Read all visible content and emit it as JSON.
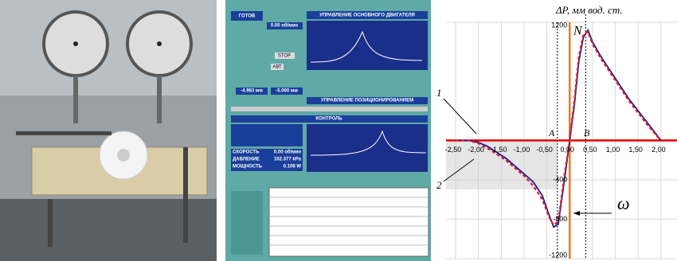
{
  "screenshot": {
    "status": "ГОТОВ",
    "motor_title": "УПРАВЛЕНИЕ ОСНОВНОГО ДВИГАТЕЛЯ",
    "speed_set": "0.00 об/мин",
    "stop": "STOP",
    "auto": "АВТ",
    "position_title": "УПРАВЛЕНИЕ ПОЗИЦИОНИРОВАНИЕМ",
    "pos1": "-4.983 мм",
    "pos2": "-5.000 мм",
    "control_title": "КОНТРОЛЬ",
    "speed_label": "СКОРОСТЬ",
    "speed_value": "0.00 об/мин",
    "pressure_label": "ДАВЛЕНИЕ",
    "pressure_value": "102.377 kPa",
    "power_label": "МОЩНОСТЬ",
    "power_value": "0.108 W"
  },
  "chart_data": {
    "type": "line",
    "title": "ΔP, мм вод. ст.",
    "x": [
      -2.5,
      -2.2,
      -2.0,
      -1.8,
      -1.6,
      -1.4,
      -1.2,
      -1.0,
      -0.8,
      -0.6,
      -0.45,
      -0.35,
      -0.25,
      -0.1,
      0,
      0.1,
      0.2,
      0.3,
      0.4,
      0.5,
      0.7,
      0.9,
      1.1,
      1.3,
      1.5,
      1.7,
      1.9,
      2.0
    ],
    "series": [
      {
        "color": "#1a1a9a",
        "values": [
          0,
          0,
          -20,
          -60,
          -120,
          -180,
          -260,
          -340,
          -420,
          -560,
          -760,
          -880,
          -850,
          -350,
          0,
          350,
          800,
          1050,
          1120,
          1000,
          840,
          700,
          560,
          420,
          300,
          180,
          60,
          0
        ]
      },
      {
        "color": "#e02020",
        "values": [
          0,
          0,
          -30,
          -80,
          -140,
          -200,
          -280,
          -360,
          -460,
          -600,
          -780,
          -860,
          -820,
          -300,
          0,
          400,
          850,
          1080,
          1100,
          980,
          820,
          680,
          540,
          400,
          280,
          160,
          50,
          0
        ]
      }
    ],
    "xlim": [
      -2.7,
      2.5
    ],
    "ylim": [
      -1200,
      1200
    ],
    "xticks": [
      {
        "value": -2.5,
        "label": "-2,50"
      },
      {
        "value": -2.0,
        "label": "-2,00"
      },
      {
        "value": -1.5,
        "label": "-1,50"
      },
      {
        "value": -1.0,
        "label": "-1,00"
      },
      {
        "value": -0.5,
        "label": "-0,50"
      },
      {
        "value": 0,
        "label": "0,00"
      },
      {
        "value": 0.5,
        "label": "0,50"
      },
      {
        "value": 1.0,
        "label": "1,00"
      },
      {
        "value": 1.5,
        "label": "1,50"
      },
      {
        "value": 2.0,
        "label": "2,00"
      }
    ],
    "yticks": [
      1200,
      -400,
      -800,
      -1200
    ],
    "grid": true,
    "annotations": {
      "n": "N",
      "a": "A",
      "b": "B",
      "one": "1",
      "two": "2",
      "omega": "ω"
    }
  }
}
